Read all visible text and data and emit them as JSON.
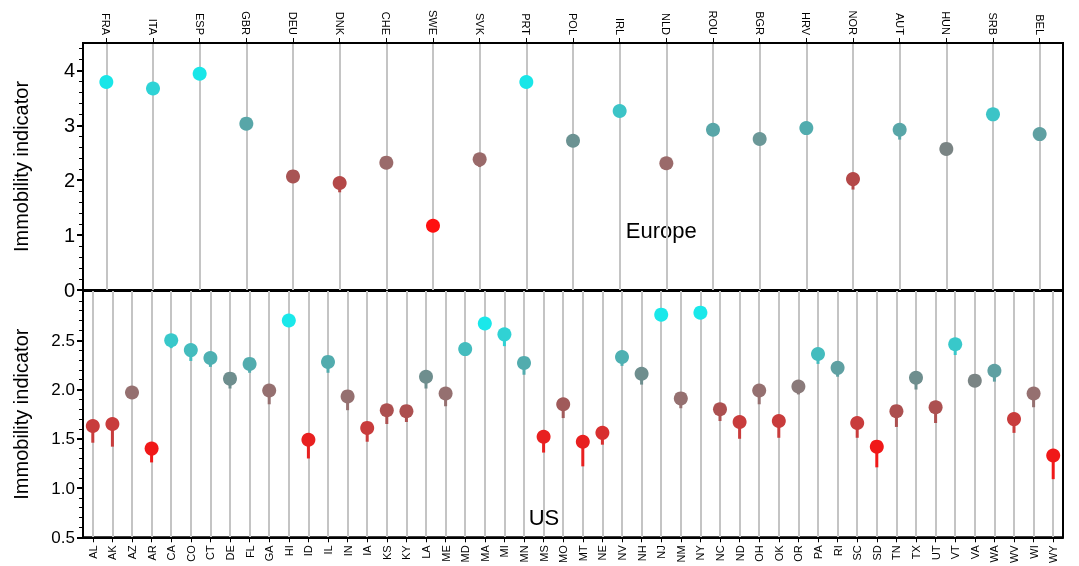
{
  "chart_data": [
    {
      "type": "scatter",
      "ylabel": "Immobility indicator",
      "annotations": [
        "Europe"
      ],
      "grid": "x",
      "marker": "circle",
      "ylim": [
        0,
        4.5
      ],
      "yticks": [
        0,
        1,
        2,
        3,
        4
      ],
      "categories": [
        "FRA",
        "ITA",
        "ESP",
        "GBR",
        "DEU",
        "DNK",
        "CHE",
        "SWE",
        "SVK",
        "PRT",
        "POL",
        "IRL",
        "NLD",
        "ROU",
        "BGR",
        "HRV",
        "NOR",
        "AUT",
        "HUN",
        "SRB",
        "BEL"
      ],
      "values": [
        3.79,
        3.67,
        3.94,
        3.03,
        2.07,
        1.95,
        2.32,
        1.17,
        2.38,
        3.79,
        2.72,
        3.26,
        2.31,
        2.92,
        2.75,
        2.95,
        2.02,
        2.92,
        2.57,
        3.2,
        2.84
      ],
      "errors": [
        null,
        null,
        null,
        null,
        null,
        [
          1.78,
          1.95
        ],
        null,
        null,
        [
          2.24,
          2.38
        ],
        null,
        null,
        null,
        null,
        null,
        null,
        null,
        [
          1.83,
          2.02
        ],
        [
          2.74,
          2.92
        ],
        null,
        null,
        null
      ],
      "colors": [
        "#19e6e8",
        "#2ed3d6",
        "#19e6e8",
        "#58a6a8",
        "#a85454",
        "#b44848",
        "#9a6a6a",
        "#ff1010",
        "#9a6a6a",
        "#19e6e8",
        "#6b9292",
        "#3cc4c7",
        "#9a6a6a",
        "#58a6a8",
        "#6b9898",
        "#52acae",
        "#b44848",
        "#58a6a8",
        "#7a8484",
        "#3cc4c7",
        "#5fa0a2"
      ]
    },
    {
      "type": "scatter",
      "ylabel": "Immobility indicator",
      "annotations": [
        "US"
      ],
      "grid": "x",
      "marker": "circle",
      "ylim": [
        0.5,
        3.0
      ],
      "yticks": [
        {
          "value": 0.5,
          "label": "0.5"
        },
        {
          "value": 1,
          "label": "1.0"
        },
        {
          "value": 1.5,
          "label": "1.5"
        },
        {
          "value": 2,
          "label": "2.0"
        },
        {
          "value": 2.5,
          "label": "2.5"
        }
      ],
      "categories": [
        "AL",
        "AK",
        "AZ",
        "AR",
        "CA",
        "CO",
        "CT",
        "DE",
        "FL",
        "GA",
        "HI",
        "ID",
        "IL",
        "IN",
        "IA",
        "KS",
        "KY",
        "LA",
        "ME",
        "MD",
        "MA",
        "MI",
        "MN",
        "MS",
        "MO",
        "MT",
        "NE",
        "NV",
        "NH",
        "NJ",
        "NM",
        "NY",
        "NC",
        "ND",
        "OH",
        "OK",
        "OR",
        "PA",
        "RI",
        "SC",
        "SD",
        "TN",
        "TX",
        "UT",
        "VT",
        "VA",
        "WA",
        "WV",
        "WI",
        "WY"
      ],
      "values": [
        1.63,
        1.65,
        1.97,
        1.4,
        2.5,
        2.4,
        2.32,
        2.11,
        2.26,
        1.99,
        2.7,
        1.49,
        2.28,
        1.93,
        1.61,
        1.79,
        1.78,
        2.13,
        1.96,
        2.41,
        2.67,
        2.56,
        2.27,
        1.52,
        1.85,
        1.47,
        1.56,
        2.33,
        2.16,
        2.76,
        1.91,
        2.78,
        1.8,
        1.67,
        1.99,
        1.68,
        2.03,
        2.36,
        2.22,
        1.66,
        1.42,
        1.78,
        2.12,
        1.82,
        2.46,
        2.09,
        2.19,
        1.7,
        1.96,
        1.33
      ],
      "errors": [
        [
          1.46,
          1.63
        ],
        [
          1.42,
          1.65
        ],
        null,
        [
          1.26,
          1.4
        ],
        [
          2.42,
          2.5
        ],
        [
          2.29,
          2.4
        ],
        [
          2.23,
          2.32
        ],
        [
          2.01,
          2.11
        ],
        [
          2.17,
          2.26
        ],
        [
          1.85,
          1.99
        ],
        null,
        [
          1.3,
          1.49
        ],
        [
          2.17,
          2.28
        ],
        [
          1.79,
          1.93
        ],
        [
          1.47,
          1.61
        ],
        [
          1.65,
          1.79
        ],
        [
          1.67,
          1.78
        ],
        [
          2.01,
          2.13
        ],
        [
          1.83,
          1.96
        ],
        null,
        null,
        [
          2.44,
          2.56
        ],
        [
          2.15,
          2.27
        ],
        [
          1.36,
          1.52
        ],
        [
          1.71,
          1.85
        ],
        [
          1.22,
          1.47
        ],
        [
          1.44,
          1.56
        ],
        [
          2.24,
          2.33
        ],
        [
          2.05,
          2.16
        ],
        null,
        [
          1.81,
          1.91
        ],
        null,
        [
          1.68,
          1.8
        ],
        [
          1.5,
          1.67
        ],
        [
          1.85,
          1.99
        ],
        [
          1.51,
          1.68
        ],
        [
          1.95,
          2.03
        ],
        [
          2.26,
          2.36
        ],
        [
          2.13,
          2.22
        ],
        [
          1.51,
          1.66
        ],
        [
          1.21,
          1.42
        ],
        [
          1.62,
          1.78
        ],
        [
          2.0,
          2.12
        ],
        [
          1.66,
          1.82
        ],
        [
          2.35,
          2.46
        ],
        null,
        [
          2.08,
          2.19
        ],
        [
          1.56,
          1.7
        ],
        [
          1.82,
          1.96
        ],
        [
          1.09,
          1.33
        ]
      ],
      "colors": [
        "#c83c3c",
        "#c83c3c",
        "#957070",
        "#f01818",
        "#38c8ca",
        "#44bcbe",
        "#4eb0b2",
        "#6e8e8e",
        "#52acae",
        "#957070",
        "#1ae8ea",
        "#e82020",
        "#52acae",
        "#957070",
        "#c83c3c",
        "#ac5050",
        "#ac5050",
        "#6e8e8e",
        "#957070",
        "#44bcbe",
        "#1ae8ea",
        "#30d2d4",
        "#52acae",
        "#e82020",
        "#a05a5a",
        "#e82020",
        "#d83030",
        "#4eb0b2",
        "#6e8e8e",
        "#1ae8ea",
        "#957070",
        "#1ae8ea",
        "#ac5050",
        "#c83c3c",
        "#957070",
        "#c83c3c",
        "#8a7a7a",
        "#44bcbe",
        "#5fa0a2",
        "#c83c3c",
        "#f01818",
        "#ac5050",
        "#6e8e8e",
        "#ac5050",
        "#38c8ca",
        "#7a8484",
        "#5fa0a2",
        "#c83c3c",
        "#957070",
        "#f01818"
      ]
    }
  ]
}
